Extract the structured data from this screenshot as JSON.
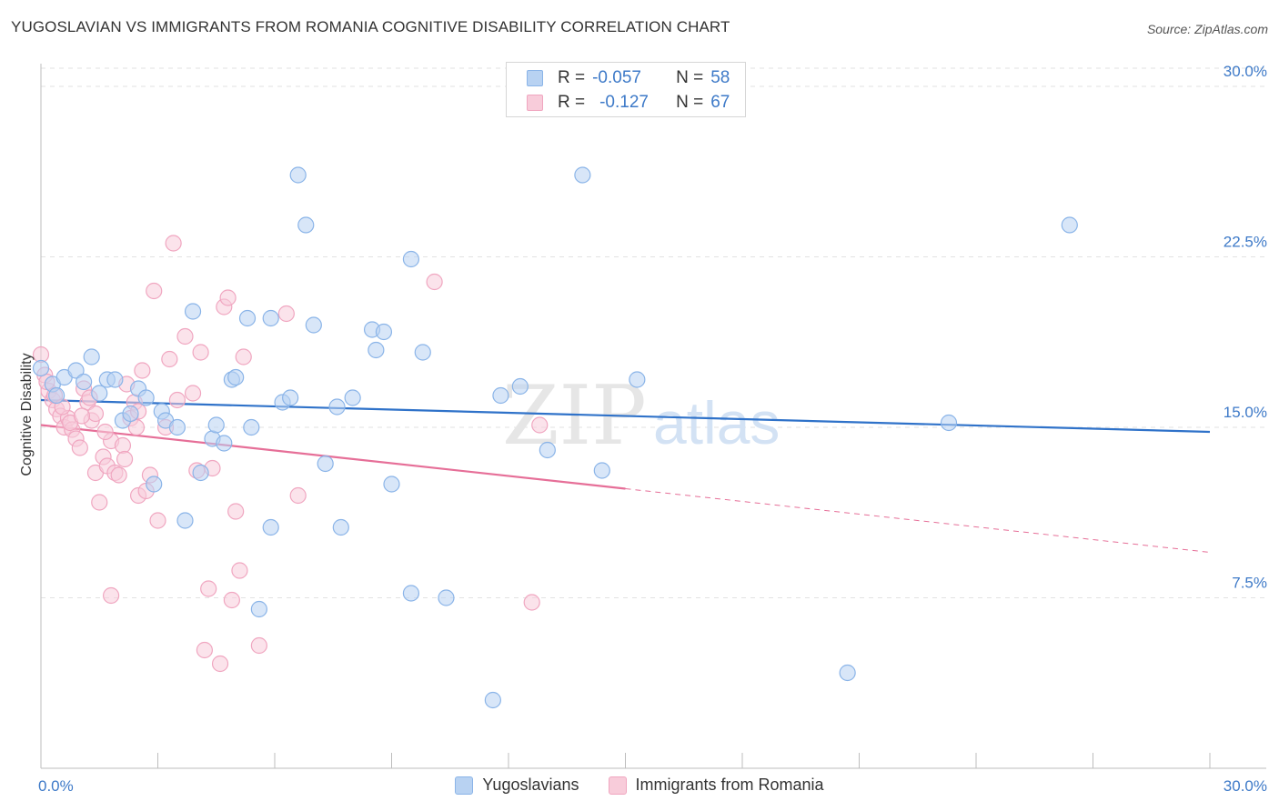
{
  "title": "YUGOSLAVIAN VS IMMIGRANTS FROM ROMANIA COGNITIVE DISABILITY CORRELATION CHART",
  "source": "Source: ZipAtlas.com",
  "watermark": {
    "zip": "ZIP",
    "atlas": "atlas"
  },
  "legend": {
    "rows": [
      {
        "r_label": "R =",
        "r_value": "-0.057",
        "n_label": "N =",
        "n_value": "58"
      },
      {
        "r_label": "R =",
        "r_value": "-0.127",
        "n_label": "N =",
        "n_value": "67"
      }
    ]
  },
  "chart_data": {
    "type": "scatter",
    "title": "YUGOSLAVIAN VS IMMIGRANTS FROM ROMANIA COGNITIVE DISABILITY CORRELATION CHART",
    "xlabel": "",
    "ylabel": "Cognitive Disability",
    "xlim": [
      0,
      30
    ],
    "ylim": [
      0,
      31
    ],
    "x_tick_labels": [
      "0.0%",
      "30.0%"
    ],
    "y_ticks": [
      7.5,
      15.0,
      22.5,
      30.0
    ],
    "y_tick_labels": [
      "7.5%",
      "15.0%",
      "22.5%",
      "30.0%"
    ],
    "grid": "horizontal-dashed",
    "legend_position": "top-center",
    "series": [
      {
        "name": "Yugoslavians",
        "color": "#8ab4e8",
        "fill": "#b8d2f2",
        "line_color": "#2f72c9",
        "trend": {
          "x": [
            0,
            30
          ],
          "y": [
            16.2,
            14.8
          ]
        },
        "points": [
          [
            0.0,
            17.6
          ],
          [
            0.3,
            16.9
          ],
          [
            0.4,
            16.4
          ],
          [
            0.6,
            17.2
          ],
          [
            0.9,
            17.5
          ],
          [
            1.1,
            17.0
          ],
          [
            1.3,
            18.1
          ],
          [
            1.5,
            16.5
          ],
          [
            1.7,
            17.1
          ],
          [
            1.9,
            17.1
          ],
          [
            2.1,
            15.3
          ],
          [
            2.3,
            15.6
          ],
          [
            2.5,
            16.7
          ],
          [
            2.7,
            16.3
          ],
          [
            2.9,
            12.5
          ],
          [
            3.1,
            15.7
          ],
          [
            3.2,
            15.3
          ],
          [
            3.5,
            15.0
          ],
          [
            3.7,
            10.9
          ],
          [
            3.9,
            20.1
          ],
          [
            4.1,
            13.0
          ],
          [
            4.4,
            14.5
          ],
          [
            4.5,
            15.1
          ],
          [
            4.7,
            14.3
          ],
          [
            4.9,
            17.1
          ],
          [
            5.0,
            17.2
          ],
          [
            5.3,
            19.8
          ],
          [
            5.4,
            15.0
          ],
          [
            5.6,
            7.0
          ],
          [
            5.9,
            10.6
          ],
          [
            5.9,
            19.8
          ],
          [
            6.2,
            16.1
          ],
          [
            6.4,
            16.3
          ],
          [
            6.6,
            26.1
          ],
          [
            6.8,
            23.9
          ],
          [
            7.0,
            19.5
          ],
          [
            7.3,
            13.4
          ],
          [
            7.6,
            15.9
          ],
          [
            7.7,
            10.6
          ],
          [
            8.0,
            16.3
          ],
          [
            8.5,
            19.3
          ],
          [
            8.6,
            18.4
          ],
          [
            8.8,
            19.2
          ],
          [
            9.0,
            12.5
          ],
          [
            9.5,
            22.4
          ],
          [
            9.5,
            7.7
          ],
          [
            9.8,
            18.3
          ],
          [
            10.4,
            7.5
          ],
          [
            11.6,
            3.0
          ],
          [
            11.8,
            16.4
          ],
          [
            12.3,
            16.8
          ],
          [
            13.0,
            14.0
          ],
          [
            13.9,
            26.1
          ],
          [
            14.4,
            13.1
          ],
          [
            15.3,
            17.1
          ],
          [
            20.7,
            4.2
          ],
          [
            23.3,
            15.2
          ],
          [
            26.4,
            23.9
          ]
        ]
      },
      {
        "name": "Immigrants from Romania",
        "color": "#f0a6c0",
        "fill": "#f8ccda",
        "line_color": "#e66f98",
        "trend": {
          "x": [
            0,
            15
          ],
          "y": [
            15.1,
            12.3
          ]
        },
        "trend_dashed": {
          "x": [
            15,
            30
          ],
          "y": [
            12.3,
            9.5
          ]
        },
        "points": [
          [
            0.0,
            18.2
          ],
          [
            0.1,
            17.3
          ],
          [
            0.2,
            16.6
          ],
          [
            0.3,
            16.2
          ],
          [
            0.4,
            15.8
          ],
          [
            0.5,
            15.5
          ],
          [
            0.6,
            15.0
          ],
          [
            0.7,
            15.4
          ],
          [
            0.8,
            14.9
          ],
          [
            0.9,
            14.5
          ],
          [
            1.0,
            14.1
          ],
          [
            1.1,
            16.7
          ],
          [
            1.2,
            16.1
          ],
          [
            1.3,
            15.3
          ],
          [
            1.4,
            15.6
          ],
          [
            1.4,
            13.0
          ],
          [
            1.5,
            11.7
          ],
          [
            1.6,
            13.7
          ],
          [
            1.7,
            13.3
          ],
          [
            1.8,
            14.4
          ],
          [
            1.8,
            7.6
          ],
          [
            1.9,
            13.0
          ],
          [
            2.0,
            12.9
          ],
          [
            2.1,
            14.2
          ],
          [
            2.2,
            16.9
          ],
          [
            2.3,
            15.4
          ],
          [
            2.4,
            16.1
          ],
          [
            2.5,
            15.7
          ],
          [
            2.5,
            12.0
          ],
          [
            2.6,
            17.5
          ],
          [
            2.7,
            12.2
          ],
          [
            2.8,
            12.9
          ],
          [
            2.9,
            21.0
          ],
          [
            3.0,
            10.9
          ],
          [
            3.2,
            15.0
          ],
          [
            3.3,
            18.0
          ],
          [
            3.4,
            23.1
          ],
          [
            3.5,
            16.2
          ],
          [
            3.7,
            19.0
          ],
          [
            3.9,
            16.5
          ],
          [
            4.0,
            13.1
          ],
          [
            4.1,
            18.3
          ],
          [
            4.2,
            5.2
          ],
          [
            4.3,
            7.9
          ],
          [
            4.4,
            13.2
          ],
          [
            4.6,
            4.6
          ],
          [
            4.7,
            20.3
          ],
          [
            4.8,
            20.7
          ],
          [
            4.9,
            7.4
          ],
          [
            5.0,
            11.3
          ],
          [
            5.1,
            8.7
          ],
          [
            5.2,
            18.1
          ],
          [
            5.6,
            5.4
          ],
          [
            6.3,
            20.0
          ],
          [
            6.6,
            12.0
          ],
          [
            10.1,
            21.4
          ],
          [
            12.6,
            7.3
          ],
          [
            12.8,
            15.1
          ],
          [
            0.15,
            17.0
          ],
          [
            0.35,
            16.4
          ],
          [
            0.55,
            15.9
          ],
          [
            0.75,
            15.2
          ],
          [
            1.05,
            15.5
          ],
          [
            1.25,
            16.3
          ],
          [
            1.65,
            14.8
          ],
          [
            2.15,
            13.6
          ],
          [
            2.45,
            15.0
          ]
        ]
      }
    ]
  }
}
